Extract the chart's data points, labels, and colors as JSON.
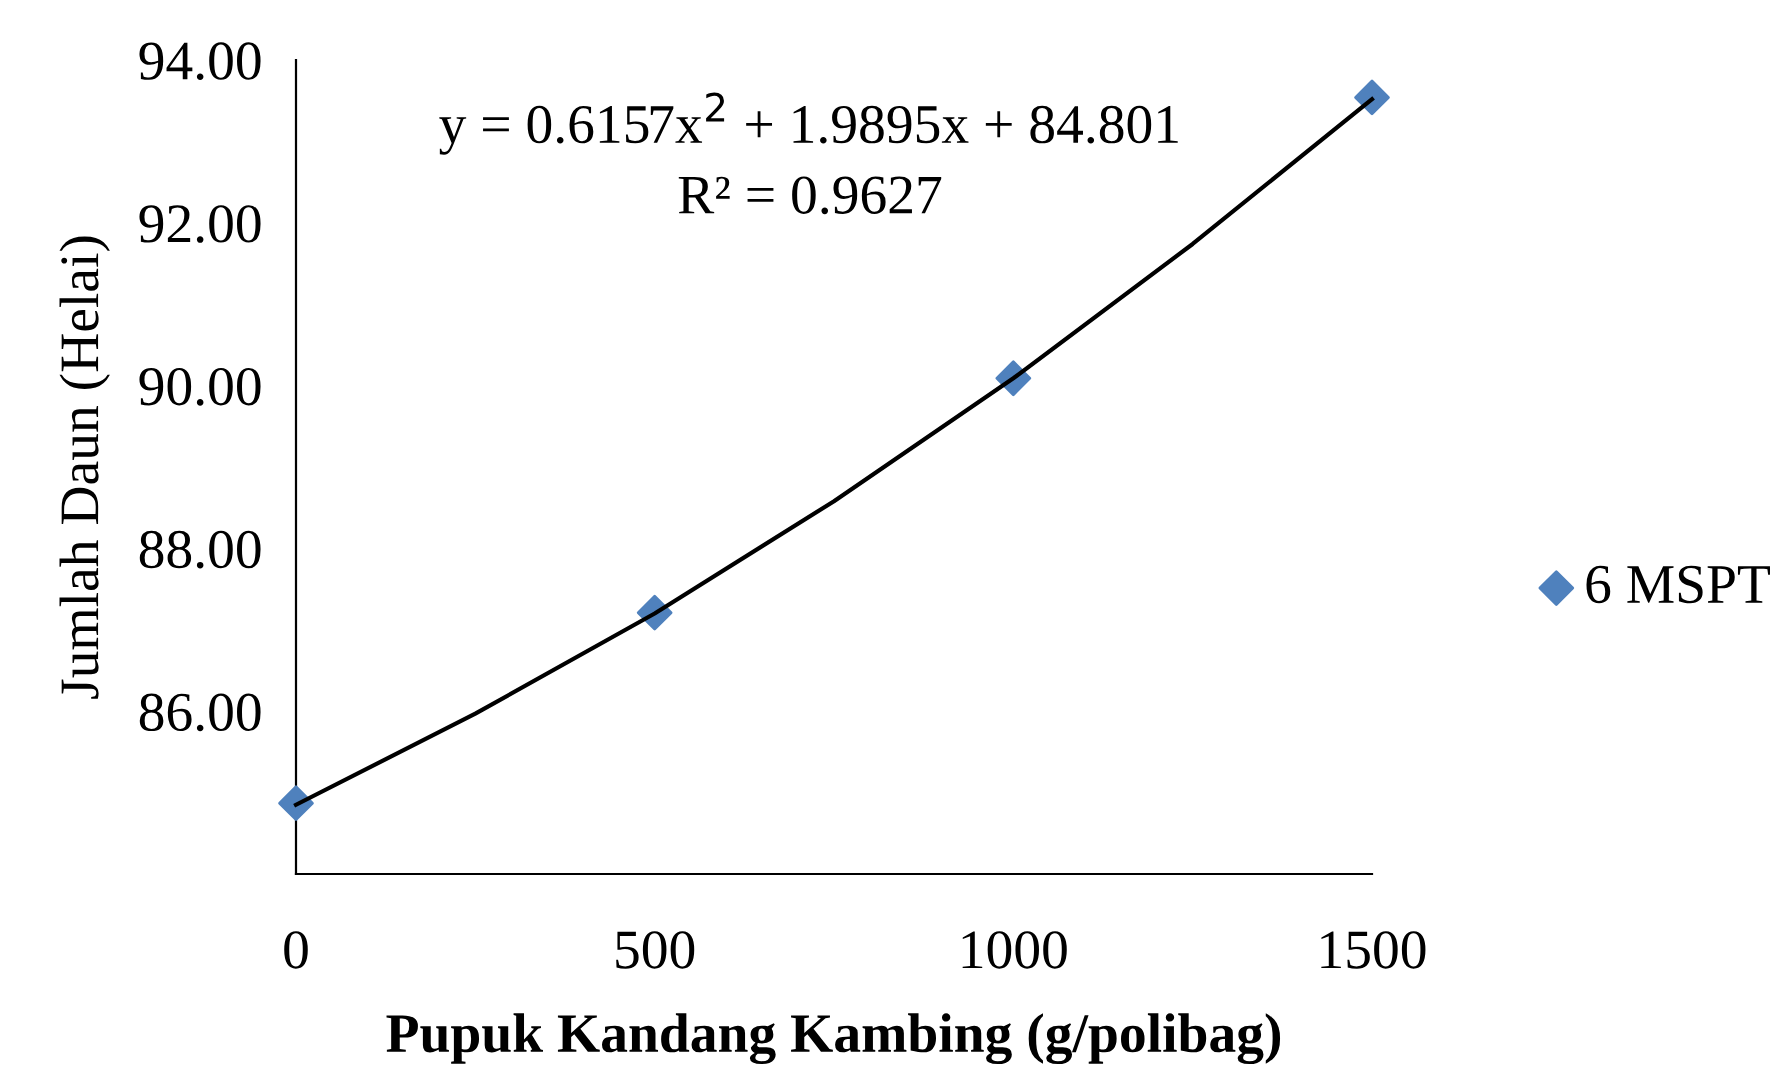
{
  "chart_data": {
    "type": "scatter",
    "xlabel": "Pupuk Kandang Kambing (g/polibag)",
    "ylabel": "Jumlah Daun (Helai)",
    "x": [
      0,
      500,
      1000,
      1500
    ],
    "series": [
      {
        "name": "6 MSPT",
        "color": "#4f81bd",
        "values": [
          84.87,
          87.21,
          90.09,
          93.54
        ],
        "marker": "diamond"
      },
      {
        "type": "line",
        "color": "#000000",
        "x": [
          0,
          250,
          500,
          750,
          1000,
          1250,
          1500
        ],
        "values": [
          84.85,
          85.97,
          87.2,
          88.58,
          90.09,
          91.74,
          93.52
        ],
        "line_style": "solid",
        "marker": "none"
      }
    ],
    "xlim": [
      0,
      1500
    ],
    "xticks": [
      0,
      500,
      1000,
      1500
    ],
    "ylim": [
      84,
      94
    ],
    "yticks": [
      {
        "value": 84,
        "label": null
      },
      {
        "value": 86,
        "label": "86.00"
      },
      {
        "value": 88,
        "label": "88.00"
      },
      {
        "value": 90,
        "label": "90.00"
      },
      {
        "value": 92,
        "label": "92.00"
      },
      {
        "value": 94,
        "label": "94.00"
      }
    ],
    "annotations": [
      "y = 0.6157x$^{2}$ + 1.9895x + 84.801",
      "R² = 0.9627"
    ],
    "legend": "right",
    "grid": false
  }
}
